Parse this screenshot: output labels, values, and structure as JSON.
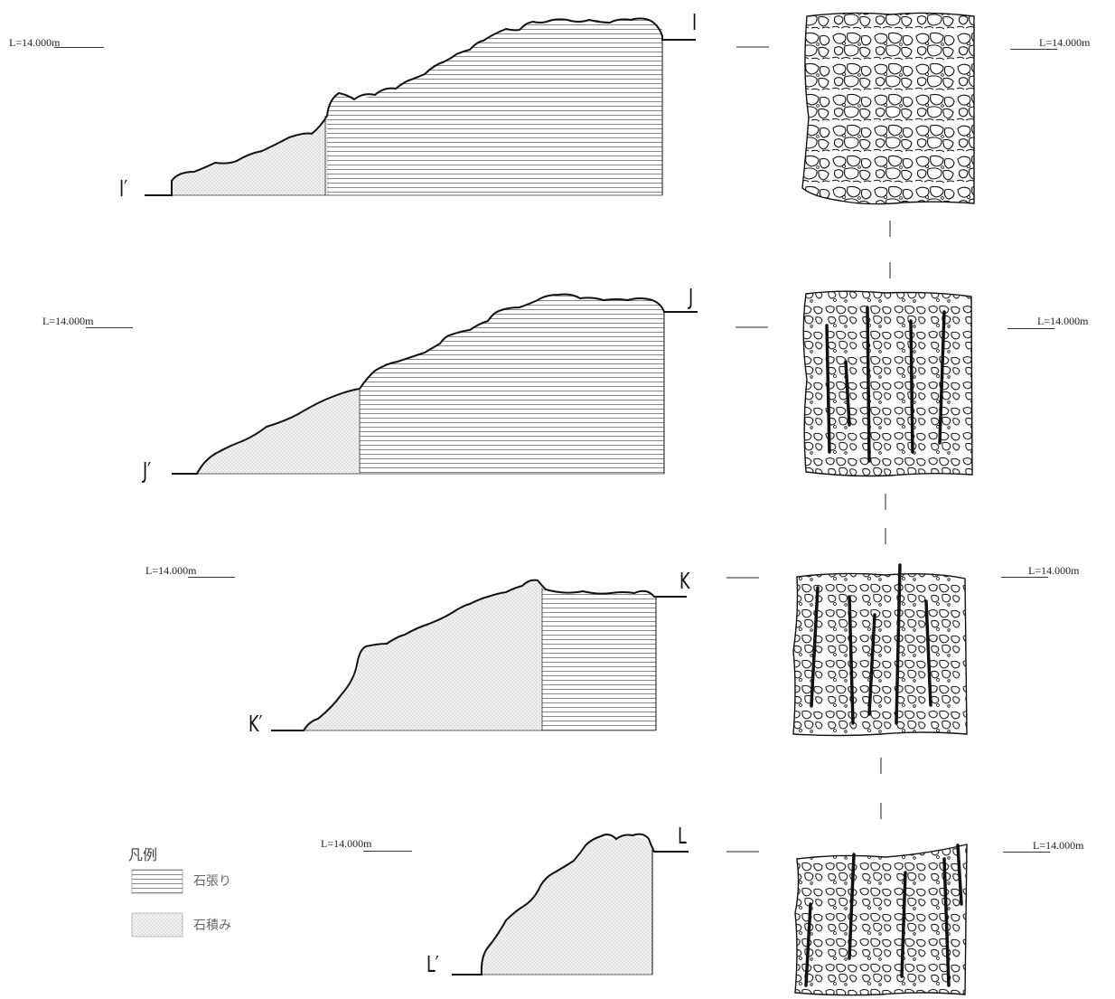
{
  "level_label": "L=14.000m",
  "sections": [
    {
      "id": "I",
      "start_label": "I",
      "end_label": "I′",
      "level": "L=14.000m"
    },
    {
      "id": "J",
      "start_label": "J",
      "end_label": "J′",
      "level": "L=14.000m"
    },
    {
      "id": "K",
      "start_label": "K",
      "end_label": "K′",
      "level": "L=14.000m"
    },
    {
      "id": "L",
      "start_label": "L",
      "end_label": "L′",
      "level": "L=14.000m"
    }
  ],
  "legend": {
    "title": "凡例",
    "items": [
      {
        "label": "石張り",
        "pattern": "horizontal-hatch"
      },
      {
        "label": "石積み",
        "pattern": "stipple"
      }
    ]
  },
  "colors": {
    "line": "#111111",
    "hatch": "#555555",
    "stipple": "#7a7a7a",
    "paper": "#ffffff"
  }
}
